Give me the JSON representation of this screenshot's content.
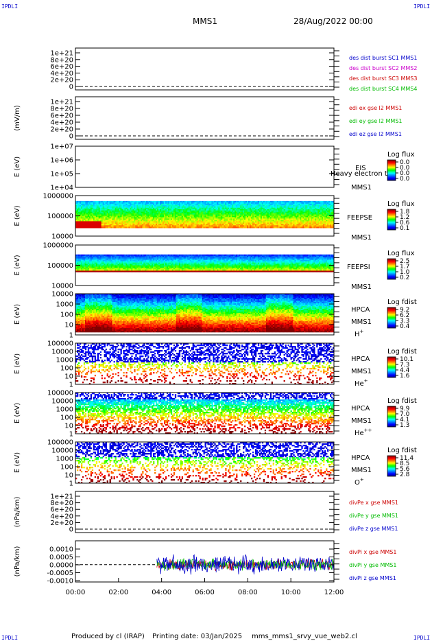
{
  "header": {
    "corner_tl": "IPDLI",
    "corner_tr": "IPDLI",
    "corner_bl": "IPDLI",
    "corner_br": "IPDLI",
    "spacecraft": "MMS1",
    "date": "28/Aug/2022 00:00"
  },
  "footer": {
    "produced_by": "Produced by cl (IRAP)",
    "printing_date": "Printing date: 03/Jan/2025",
    "script": "mms_mms1_srvy_vue_web2.cl"
  },
  "colors": {
    "mms1": "#0000cc",
    "mms2": "#cc00cc",
    "mms3": "#cc0000",
    "mms4": "#00bb00",
    "x": "#cc0000",
    "y": "#00bb00",
    "z": "#0000cc"
  },
  "chart_data": [
    {
      "id": "p1",
      "type": "line",
      "ylabel": "",
      "ytick_labels": [
        "0",
        "2e+20",
        "4e+20",
        "6e+20",
        "8e+20",
        "1e+21"
      ],
      "legend": [
        "des dist burst SC1 MMS1",
        "des dist burst SC2 MMS2",
        "des dist burst SC3 MMS3",
        "des dist burst SC4 MMS4"
      ],
      "legend_colors": [
        "#0000cc",
        "#cc00cc",
        "#cc0000",
        "#00bb00"
      ]
    },
    {
      "id": "p2",
      "type": "line",
      "ylabel": "(mV/m)",
      "ytick_labels": [
        "0",
        "2e+20",
        "4e+20",
        "6e+20",
        "8e+20",
        "1e+21"
      ],
      "legend": [
        "edi ex gse l2 MMS1",
        "edi ey gse l2 MMS1",
        "edi ez gse l2 MMS1"
      ],
      "legend_colors": [
        "#cc0000",
        "#00bb00",
        "#0000cc"
      ]
    },
    {
      "id": "p3",
      "type": "heatmap",
      "ylabel": "E (eV)",
      "ytick_labels": [
        "1e+04",
        "1e+05",
        "1e+06",
        "1e+07"
      ],
      "labels": [
        "EIS",
        "MMS1"
      ],
      "overlay_text": "Heavy electron to",
      "cbar_title": "Log flux",
      "cbar_ticks": [
        "0.0",
        "0.0",
        "0.0",
        "0.0"
      ]
    },
    {
      "id": "p4",
      "type": "heatmap",
      "ylabel": "E (eV)",
      "ytick_labels": [
        "10000",
        "100000",
        "1000000"
      ],
      "labels": [
        "FEEPSE",
        "MMS1"
      ],
      "cbar_title": "Log flux",
      "cbar_ticks": [
        "1.8",
        "1.2",
        "0.6",
        "0.1"
      ]
    },
    {
      "id": "p5",
      "type": "heatmap",
      "ylabel": "E (eV)",
      "ytick_labels": [
        "10000",
        "100000",
        "1000000"
      ],
      "labels": [
        "FEEPSI",
        "MMS1"
      ],
      "cbar_title": "Log flux",
      "cbar_ticks": [
        "2.5",
        "1.7",
        "1.0",
        "0.2"
      ]
    },
    {
      "id": "p6",
      "type": "heatmap",
      "ylabel": "E (eV)",
      "ytick_labels": [
        "1",
        "10",
        "100",
        "1000",
        "10000"
      ],
      "labels": [
        "HPCA",
        "MMS1"
      ],
      "species": "H",
      "species_sup": "+",
      "cbar_title": "Log fdist",
      "cbar_ticks": [
        "9.2",
        "6.2",
        "3.3",
        "0.4"
      ]
    },
    {
      "id": "p7",
      "type": "heatmap",
      "ylabel": "E (eV)",
      "ytick_labels": [
        "1",
        "10",
        "100",
        "1000",
        "10000",
        "100000"
      ],
      "labels": [
        "HPCA",
        "MMS1"
      ],
      "species": "He",
      "species_sup": "+",
      "cbar_title": "Log fdist",
      "cbar_ticks": [
        "10.1",
        "7.3",
        "4.4",
        "1.6"
      ]
    },
    {
      "id": "p8",
      "type": "heatmap",
      "ylabel": "E (eV)",
      "ytick_labels": [
        "1",
        "10",
        "100",
        "1000",
        "10000",
        "100000"
      ],
      "labels": [
        "HPCA",
        "MMS1"
      ],
      "species": "He",
      "species_sup": "++",
      "cbar_title": "Log fdist",
      "cbar_ticks": [
        "9.9",
        "7.0",
        "4.1",
        "1.3"
      ]
    },
    {
      "id": "p9",
      "type": "heatmap",
      "ylabel": "E (eV)",
      "ytick_labels": [
        "1",
        "10",
        "100",
        "1000",
        "10000",
        "100000"
      ],
      "labels": [
        "HPCA",
        "MMS1"
      ],
      "species": "O",
      "species_sup": "+",
      "cbar_title": "Log fdist",
      "cbar_ticks": [
        "11.4",
        "8.5",
        "5.6",
        "2.8"
      ]
    },
    {
      "id": "p10",
      "type": "line",
      "ylabel": "(nPa/km)",
      "ytick_labels": [
        "0",
        "2e+20",
        "4e+20",
        "6e+20",
        "8e+20",
        "1e+21"
      ],
      "legend": [
        "divPe x gse MMS1",
        "divPe y gse MMS1",
        "divPe z gse MMS1"
      ],
      "legend_colors": [
        "#cc0000",
        "#00bb00",
        "#0000cc"
      ]
    },
    {
      "id": "p11",
      "type": "line",
      "ylabel": "(nPa/km)",
      "ytick_labels": [
        "-0.0010",
        "-0.0005",
        "0.0000",
        "0.0005",
        "0.0010"
      ],
      "ylim": [
        -0.0012,
        0.0013
      ],
      "x_start": "03:40",
      "legend": [
        "divPi x gse MMS1",
        "divPi y gse MMS1",
        "divPi z gse MMS1"
      ],
      "legend_colors": [
        "#cc0000",
        "#00bb00",
        "#0000cc"
      ]
    }
  ],
  "xaxis": {
    "tick_labels": [
      "00:00",
      "02:00",
      "04:00",
      "06:00",
      "08:00",
      "10:00",
      "12:00"
    ]
  }
}
